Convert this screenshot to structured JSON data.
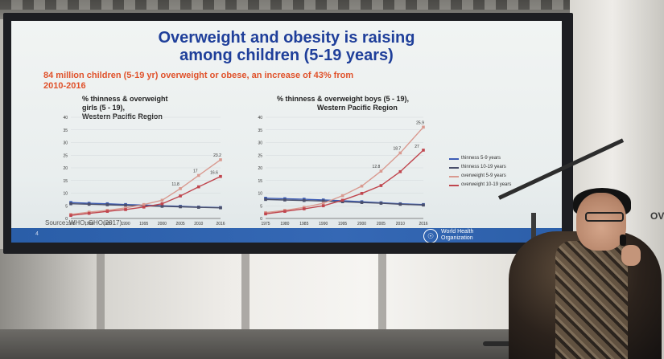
{
  "slide": {
    "title_line1": "Overweight and obesity is raising",
    "title_line2": "among children (5-19 years)",
    "subtitle_line1": "84 million children (5-19 yr) overweight or obese, an increase of 43% from",
    "subtitle_line2": "2010-2016",
    "source": "Source:  WHO, GHO(2017)",
    "page_number": "4",
    "logo_line1": "World Health",
    "logo_line2": "Organization",
    "colors": {
      "title": "#1f3f9a",
      "subtitle": "#e0522b",
      "footer": "#2f63ad"
    }
  },
  "charts": {
    "left": {
      "title_line1": "% thinness & overweight",
      "title_line2": "girls (5 - 19),",
      "title_line3": "Western Pacific Region"
    },
    "right": {
      "title_line1": "% thinness & overweight  boys (5 - 19),",
      "title_line2": "Western Pacific Region"
    },
    "legend": [
      {
        "name": "thinness 5-9 years"
      },
      {
        "name": "thinness 10-19 years"
      },
      {
        "name": "overweight 5-9 years"
      },
      {
        "name": "overweight 10-19 years"
      }
    ]
  },
  "backdrop_text": "OV",
  "chart_data": [
    {
      "type": "line",
      "title": "% thinness & overweight girls (5 - 19), Western Pacific Region",
      "x": [
        1975,
        1980,
        1985,
        1990,
        1995,
        2000,
        2005,
        2010,
        2016
      ],
      "ylim": [
        0,
        40
      ],
      "yticks": [
        0,
        5,
        10,
        15,
        20,
        25,
        30,
        35,
        40
      ],
      "series": [
        {
          "name": "thinness 5-9 years",
          "color": "#3b5bb5",
          "values": [
            6.3,
            6.0,
            5.8,
            5.5,
            5.3,
            5.0,
            4.8,
            4.5,
            4.3
          ]
        },
        {
          "name": "thinness 10-19 years",
          "color": "#4a4f6a",
          "values": [
            5.8,
            5.6,
            5.4,
            5.2,
            5.0,
            4.8,
            4.6,
            4.4,
            4.2
          ]
        },
        {
          "name": "overweight 5-9 years",
          "color": "#d99a90",
          "values": [
            1.6,
            2.5,
            3.2,
            4.2,
            5.5,
            7.2,
            11.8,
            17.0,
            23.2
          ]
        },
        {
          "name": "overweight 10-19 years",
          "color": "#c0464e",
          "values": [
            1.2,
            2.0,
            2.8,
            3.5,
            4.5,
            5.8,
            8.9,
            12.5,
            16.6
          ]
        }
      ],
      "data_labels": [
        "11.8",
        "17",
        "23.2",
        "16.6"
      ]
    },
    {
      "type": "line",
      "title": "% thinness & overweight  boys (5 - 19), Western Pacific Region",
      "x": [
        1975,
        1980,
        1985,
        1990,
        1995,
        2000,
        2005,
        2010,
        2016
      ],
      "ylim": [
        0,
        40
      ],
      "yticks": [
        0,
        5,
        10,
        15,
        20,
        25,
        30,
        35,
        40
      ],
      "series": [
        {
          "name": "thinness 5-9 years",
          "color": "#3b5bb5",
          "values": [
            8.0,
            7.8,
            7.6,
            7.3,
            7.0,
            6.6,
            6.2,
            5.8,
            5.5
          ]
        },
        {
          "name": "thinness 10-19 years",
          "color": "#4a4f6a",
          "values": [
            7.5,
            7.3,
            7.1,
            6.9,
            6.6,
            6.3,
            6.0,
            5.6,
            5.3
          ]
        },
        {
          "name": "overweight 5-9 years",
          "color": "#d99a90",
          "values": [
            2.3,
            3.2,
            4.4,
            6.0,
            9.0,
            12.8,
            18.7,
            25.9,
            36.1
          ]
        },
        {
          "name": "overweight 10-19 years",
          "color": "#c0464e",
          "values": [
            1.8,
            2.8,
            3.8,
            5.0,
            7.2,
            9.9,
            13.0,
            18.5,
            27.0
          ]
        }
      ],
      "data_labels": [
        "12.8",
        "18.7",
        "25.9",
        "36.1",
        "13",
        "18.5",
        "27"
      ]
    }
  ]
}
